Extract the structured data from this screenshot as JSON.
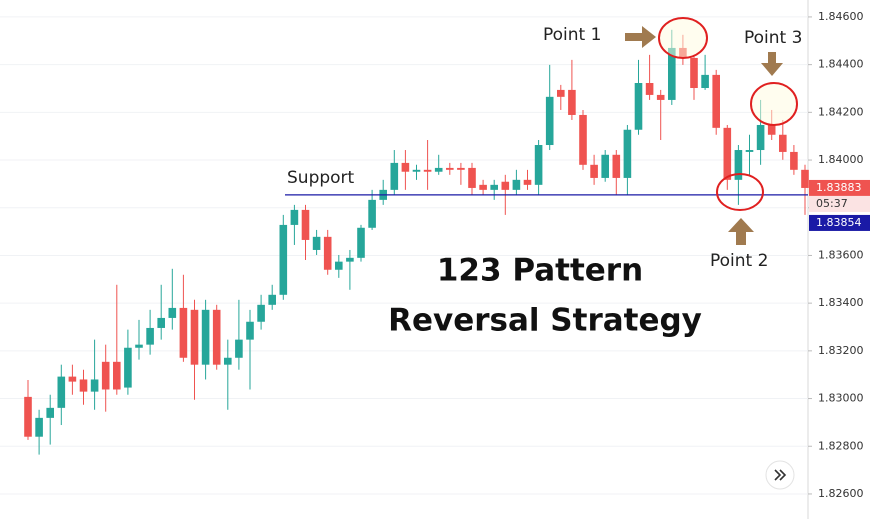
{
  "chart_data": {
    "type": "candlestick",
    "open": [
      1.83007,
      1.8284,
      1.82919,
      1.82961,
      1.83092,
      1.8308,
      1.83029,
      1.83154,
      1.83154,
      1.83046,
      1.83213,
      1.83226,
      1.83296,
      1.83338,
      1.8338,
      1.83372,
      1.83142,
      1.83372,
      1.83142,
      1.83171,
      1.83247,
      1.83322,
      1.83393,
      1.83435,
      1.83728,
      1.83791,
      1.83623,
      1.83678,
      1.8354,
      1.83574,
      1.8359,
      1.83716,
      1.83833,
      1.83875,
      1.83988,
      1.83951,
      1.83959,
      1.83951,
      1.83967,
      1.83967,
      1.83967,
      1.83896,
      1.83875,
      1.83909,
      1.83875,
      1.83917,
      1.83896,
      1.84063,
      1.84294,
      1.84294,
      1.84189,
      1.8398,
      1.83925,
      1.84022,
      1.83925,
      1.84127,
      1.84323,
      1.84273,
      1.84252,
      1.8447,
      1.84428,
      1.84302,
      1.84357,
      1.84135,
      1.83917,
      1.84034,
      1.84042,
      1.84147,
      1.84106,
      1.84034,
      1.83959
    ],
    "high": [
      1.83078,
      1.82953,
      1.83016,
      1.83142,
      1.83142,
      1.83121,
      1.83247,
      1.83226,
      1.83477,
      1.83289,
      1.8333,
      1.83372,
      1.83477,
      1.83544,
      1.83519,
      1.83414,
      1.83414,
      1.83393,
      1.83247,
      1.83414,
      1.83372,
      1.83435,
      1.83477,
      1.8377,
      1.83812,
      1.83812,
      1.83707,
      1.83707,
      1.83602,
      1.83623,
      1.83728,
      1.83875,
      1.83917,
      1.84042,
      1.84042,
      1.8398,
      1.84084,
      1.84022,
      1.83988,
      1.83988,
      1.83988,
      1.83917,
      1.83917,
      1.83938,
      1.83959,
      1.83959,
      1.84084,
      1.84399,
      1.84315,
      1.8442,
      1.8421,
      1.84022,
      1.84042,
      1.84042,
      1.84147,
      1.8442,
      1.84441,
      1.84294,
      1.84546,
      1.84525,
      1.84441,
      1.84441,
      1.84378,
      1.84147,
      1.84063,
      1.84106,
      1.84252,
      1.8421,
      1.84168,
      1.84063,
      1.8398
    ],
    "low": [
      1.82827,
      1.82765,
      1.82807,
      1.82889,
      1.83016,
      1.82974,
      1.82953,
      1.82945,
      1.83016,
      1.83016,
      1.83163,
      1.83184,
      1.83247,
      1.83289,
      1.83154,
      1.82995,
      1.8308,
      1.83121,
      1.82953,
      1.83121,
      1.83038,
      1.83289,
      1.83372,
      1.83414,
      1.83644,
      1.83581,
      1.83602,
      1.83519,
      1.83506,
      1.83456,
      1.83574,
      1.83707,
      1.83812,
      1.83854,
      1.83875,
      1.83917,
      1.83875,
      1.83938,
      1.83938,
      1.83896,
      1.83854,
      1.83854,
      1.83833,
      1.8377,
      1.83854,
      1.83875,
      1.83854,
      1.84042,
      1.8421,
      1.84168,
      1.83959,
      1.83896,
      1.83909,
      1.83854,
      1.83854,
      1.84106,
      1.84252,
      1.84084,
      1.84231,
      1.84399,
      1.84252,
      1.84294,
      1.84106,
      1.83875,
      1.83812,
      1.83938,
      1.8398,
      1.84084,
      1.84001,
      1.83938,
      1.8377
    ],
    "close": [
      1.8284,
      1.82919,
      1.82961,
      1.83092,
      1.83071,
      1.83029,
      1.8308,
      1.83038,
      1.83038,
      1.83213,
      1.83226,
      1.83296,
      1.83338,
      1.8338,
      1.83171,
      1.83142,
      1.83372,
      1.83142,
      1.83171,
      1.83247,
      1.83322,
      1.83393,
      1.83435,
      1.83728,
      1.83791,
      1.83665,
      1.83678,
      1.8354,
      1.83574,
      1.8359,
      1.83716,
      1.83833,
      1.83875,
      1.83988,
      1.83951,
      1.83959,
      1.83951,
      1.83967,
      1.83959,
      1.83959,
      1.83883,
      1.83875,
      1.83896,
      1.83875,
      1.83917,
      1.83896,
      1.84063,
      1.84265,
      1.84265,
      1.84189,
      1.8398,
      1.83925,
      1.84022,
      1.83925,
      1.84127,
      1.84323,
      1.84273,
      1.84252,
      1.8447,
      1.84428,
      1.84302,
      1.84357,
      1.84135,
      1.83917,
      1.84042,
      1.84042,
      1.84147,
      1.84106,
      1.84034,
      1.83959,
      1.83883
    ],
    "up_color": "#26a69a",
    "down_color": "#ef5350",
    "ylim": [
      1.82495,
      1.84671
    ],
    "yticks": [
      {
        "value": 1.846,
        "label": "1.84600"
      },
      {
        "value": 1.844,
        "label": "1.84400"
      },
      {
        "value": 1.842,
        "label": "1.84200"
      },
      {
        "value": 1.84,
        "label": "1.84000"
      },
      {
        "value": 1.838,
        "label": "1.83800"
      },
      {
        "value": 1.836,
        "label": "1.83600"
      },
      {
        "value": 1.834,
        "label": "1.83400"
      },
      {
        "value": 1.832,
        "label": "1.83200"
      },
      {
        "value": 1.83,
        "label": "1.83000"
      },
      {
        "value": 1.828,
        "label": "1.82800"
      },
      {
        "value": 1.826,
        "label": "1.82600"
      }
    ],
    "grid": true,
    "support_level": 1.83854,
    "support_color": "#1a1aa6",
    "last_price": 1.83883,
    "timer": "05:37",
    "annotations": {
      "support": "Support",
      "point1": "Point 1",
      "point2": "Point 2",
      "point3": "Point 3"
    },
    "title_lines": [
      "123 Pattern",
      "Reversal Strategy"
    ]
  }
}
